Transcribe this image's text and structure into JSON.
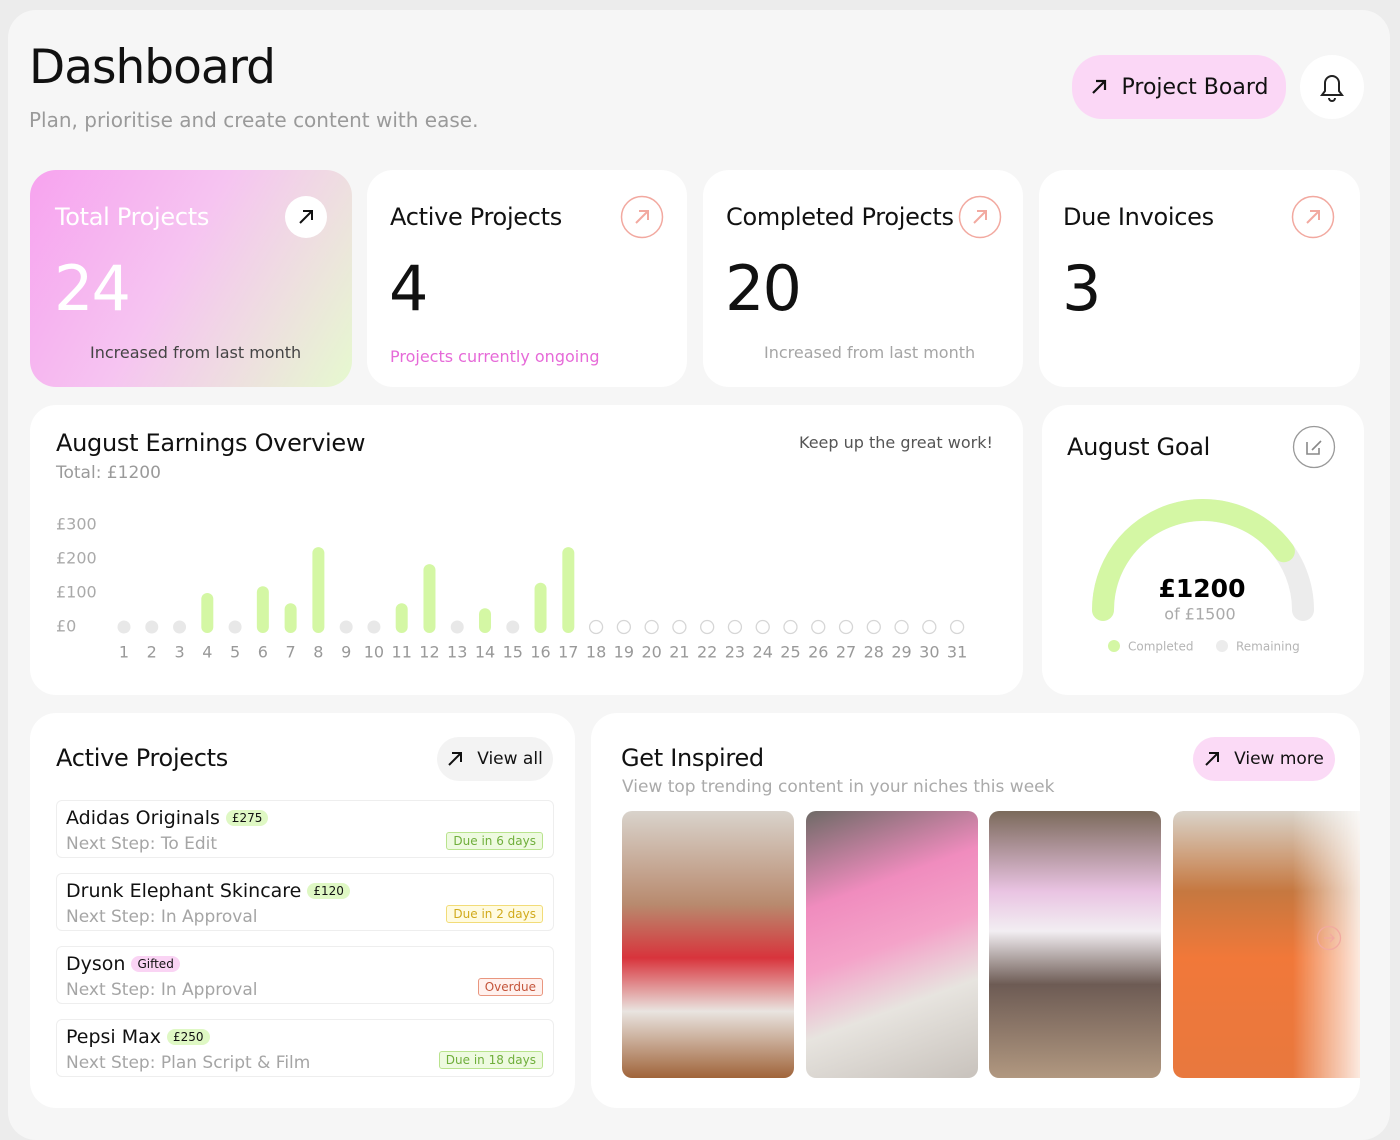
{
  "header": {
    "title": "Dashboard",
    "subtitle": "Plan, prioritise and create content with ease.",
    "button": "Project Board"
  },
  "stats": [
    {
      "label": "Total Projects",
      "value": 24,
      "note": "Increased from last month"
    },
    {
      "label": "Active Projects",
      "value": 4,
      "note": "Projects currently ongoing"
    },
    {
      "label": "Completed Projects",
      "value": 20,
      "note": "Increased from last month"
    },
    {
      "label": "Due Invoices",
      "value": 3
    }
  ],
  "earnings": {
    "type": "bar",
    "title": "August Earnings Overview",
    "subtitle": "Total: £1200",
    "note": "Keep up the great work!",
    "categories": [
      "1",
      "2",
      "3",
      "4",
      "5",
      "6",
      "7",
      "8",
      "9",
      "10",
      "11",
      "12",
      "13",
      "14",
      "15",
      "16",
      "17",
      "18",
      "19",
      "20",
      "21",
      "22",
      "23",
      "24",
      "25",
      "26",
      "27",
      "28",
      "29",
      "30",
      "31"
    ],
    "values": [
      0,
      0,
      0,
      100,
      0,
      120,
      70,
      235,
      0,
      0,
      70,
      185,
      0,
      55,
      0,
      130,
      235,
      null,
      null,
      null,
      null,
      null,
      null,
      null,
      null,
      null,
      null,
      null,
      null,
      null,
      null
    ],
    "color": "#d4f7a4",
    "ylim": [
      0,
      300
    ],
    "yticks": [
      {
        "value": 0,
        "label": "£0"
      },
      {
        "value": 100,
        "label": "£100"
      },
      {
        "value": 200,
        "label": "£200"
      },
      {
        "value": 300,
        "label": "£300"
      }
    ]
  },
  "goal": {
    "title": "August Goal",
    "value": 1200,
    "value_label": "£1200",
    "target": 1500,
    "target_label": "of £1500",
    "legend": [
      "Completed",
      "Remaining"
    ],
    "colors": [
      "#d4f7a4",
      "#ececec"
    ]
  },
  "active": {
    "title": "Active Projects",
    "button": "View all",
    "items": [
      {
        "name": "Adidas Originals",
        "tag": "£275",
        "step": "Next Step: To Edit",
        "due": "Due in 6 days"
      },
      {
        "name": "Drunk Elephant Skincare",
        "tag": "£120",
        "step": "Next Step: In Approval",
        "due": "Due in 2 days"
      },
      {
        "name": "Dyson",
        "tag": "Gifted",
        "step": "Next Step: In Approval",
        "due": "Overdue"
      },
      {
        "name": "Pepsi Max",
        "tag": "£250",
        "step": "Next Step: Plan Script & Film",
        "due": "Due in 18 days"
      }
    ]
  },
  "inspired": {
    "title": "Get Inspired",
    "subtitle": "View top trending content in your niches this week",
    "button": "View more"
  }
}
